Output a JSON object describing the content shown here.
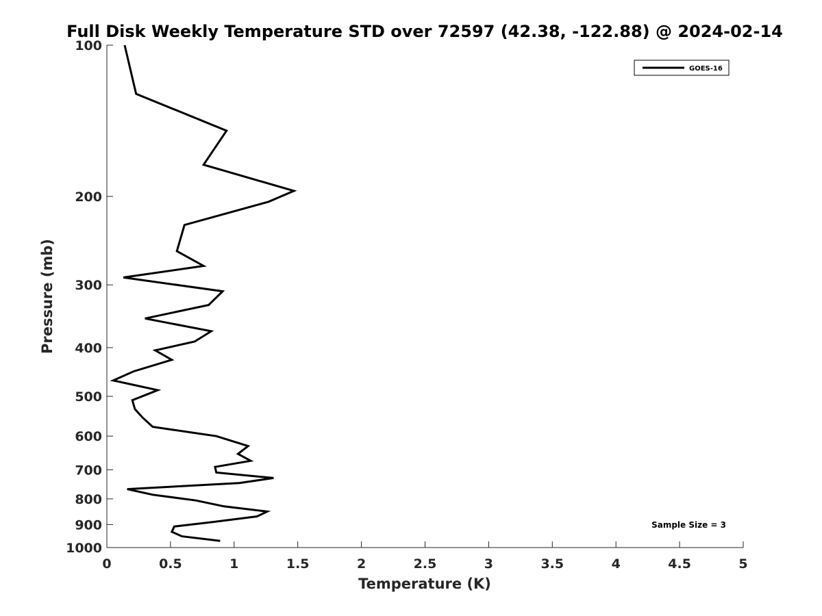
{
  "chart_data": {
    "type": "line",
    "title": "Full Disk Weekly Temperature STD over 72597 (42.38, -122.88) @ 2024-02-14",
    "xlabel": "Temperature (K)",
    "ylabel": "Pressure (mb)",
    "xlim": [
      0,
      5
    ],
    "ylim": [
      100,
      1000
    ],
    "y_scale": "log",
    "y_reversed": true,
    "grid": false,
    "legend_position": "top-right",
    "x_ticks": [
      0,
      0.5,
      1,
      1.5,
      2,
      2.5,
      3,
      3.5,
      4,
      4.5,
      5
    ],
    "x_tick_labels": [
      "0",
      "0.5",
      "1",
      "1.5",
      "2",
      "2.5",
      "3",
      "3.5",
      "4",
      "4.5",
      "5"
    ],
    "y_ticks": [
      100,
      200,
      300,
      400,
      500,
      600,
      700,
      800,
      900,
      1000
    ],
    "y_tick_labels": [
      "100",
      "200",
      "300",
      "400",
      "500",
      "600",
      "700",
      "800",
      "900",
      "1000"
    ],
    "series": [
      {
        "name": "GOES-16",
        "color": "#000000",
        "x": [
          0.14,
          0.23,
          0.94,
          0.76,
          1.47,
          1.27,
          0.61,
          0.55,
          0.76,
          0.13,
          0.91,
          0.8,
          0.3,
          0.82,
          0.69,
          0.38,
          0.51,
          0.21,
          0.05,
          0.4,
          0.2,
          0.22,
          0.28,
          0.36,
          0.86,
          1.11,
          1.03,
          1.13,
          0.85,
          0.86,
          1.31,
          1.04,
          0.16,
          0.36,
          0.7,
          0.92,
          1.26,
          1.18,
          0.84,
          0.53,
          0.51,
          0.59,
          0.89
        ],
        "y": [
          100,
          125,
          148,
          173,
          195,
          205,
          228,
          257,
          275,
          290,
          309,
          329,
          350,
          371,
          389,
          405,
          423,
          446,
          465,
          486,
          509,
          530,
          551,
          575,
          600,
          628,
          651,
          672,
          691,
          709,
          727,
          744,
          765,
          785,
          806,
          828,
          848,
          867,
          889,
          908,
          930,
          950,
          970
        ]
      }
    ],
    "annotations": [
      {
        "text": "Sample Size = 3",
        "position": "bottom-right"
      }
    ]
  }
}
